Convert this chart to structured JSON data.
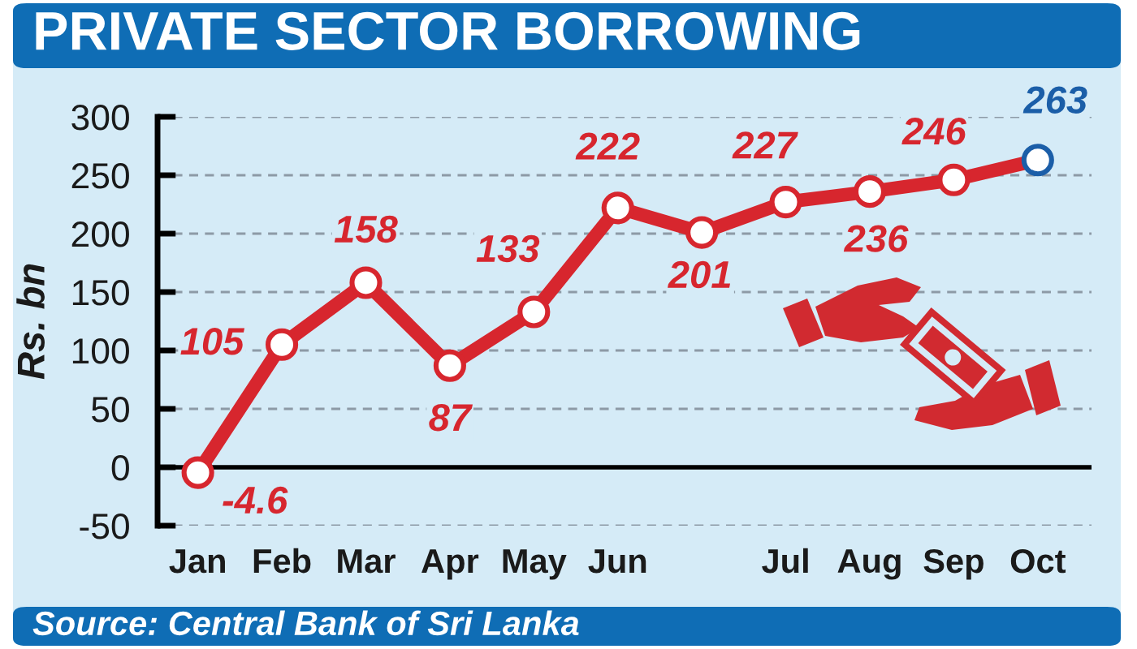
{
  "chart_data": {
    "type": "line",
    "title": "PRIVATE SECTOR BORROWING",
    "ylabel": "Rs. bn",
    "categories": [
      "Jan",
      "Feb",
      "Mar",
      "Apr",
      "May",
      "Jun",
      null,
      "Jul",
      "Aug",
      "Sep",
      "Oct"
    ],
    "series": [
      {
        "color": "#d7262e",
        "colors": [
          "#d7262e",
          "#d7262e",
          "#d7262e",
          "#d7262e",
          "#d7262e",
          "#d7262e",
          "#d7262e",
          "#d7262e",
          "#d7262e",
          "#d7262e",
          "#1b5ea8"
        ],
        "values": [
          -4.6,
          105,
          158,
          87,
          133,
          222,
          201,
          227,
          236,
          246,
          263
        ]
      }
    ],
    "ylim": [
      -50,
      300
    ],
    "yticks": [
      -50,
      0,
      50,
      100,
      150,
      200,
      250,
      300
    ],
    "grid": "y",
    "marker": "circle",
    "line_style": "solid",
    "data_labels": true,
    "ref_lines": [
      {
        "axis": "y",
        "value": 0,
        "color": "#000000"
      }
    ],
    "annotations": [
      "Source: Central Bank of Sri Lanka"
    ]
  }
}
